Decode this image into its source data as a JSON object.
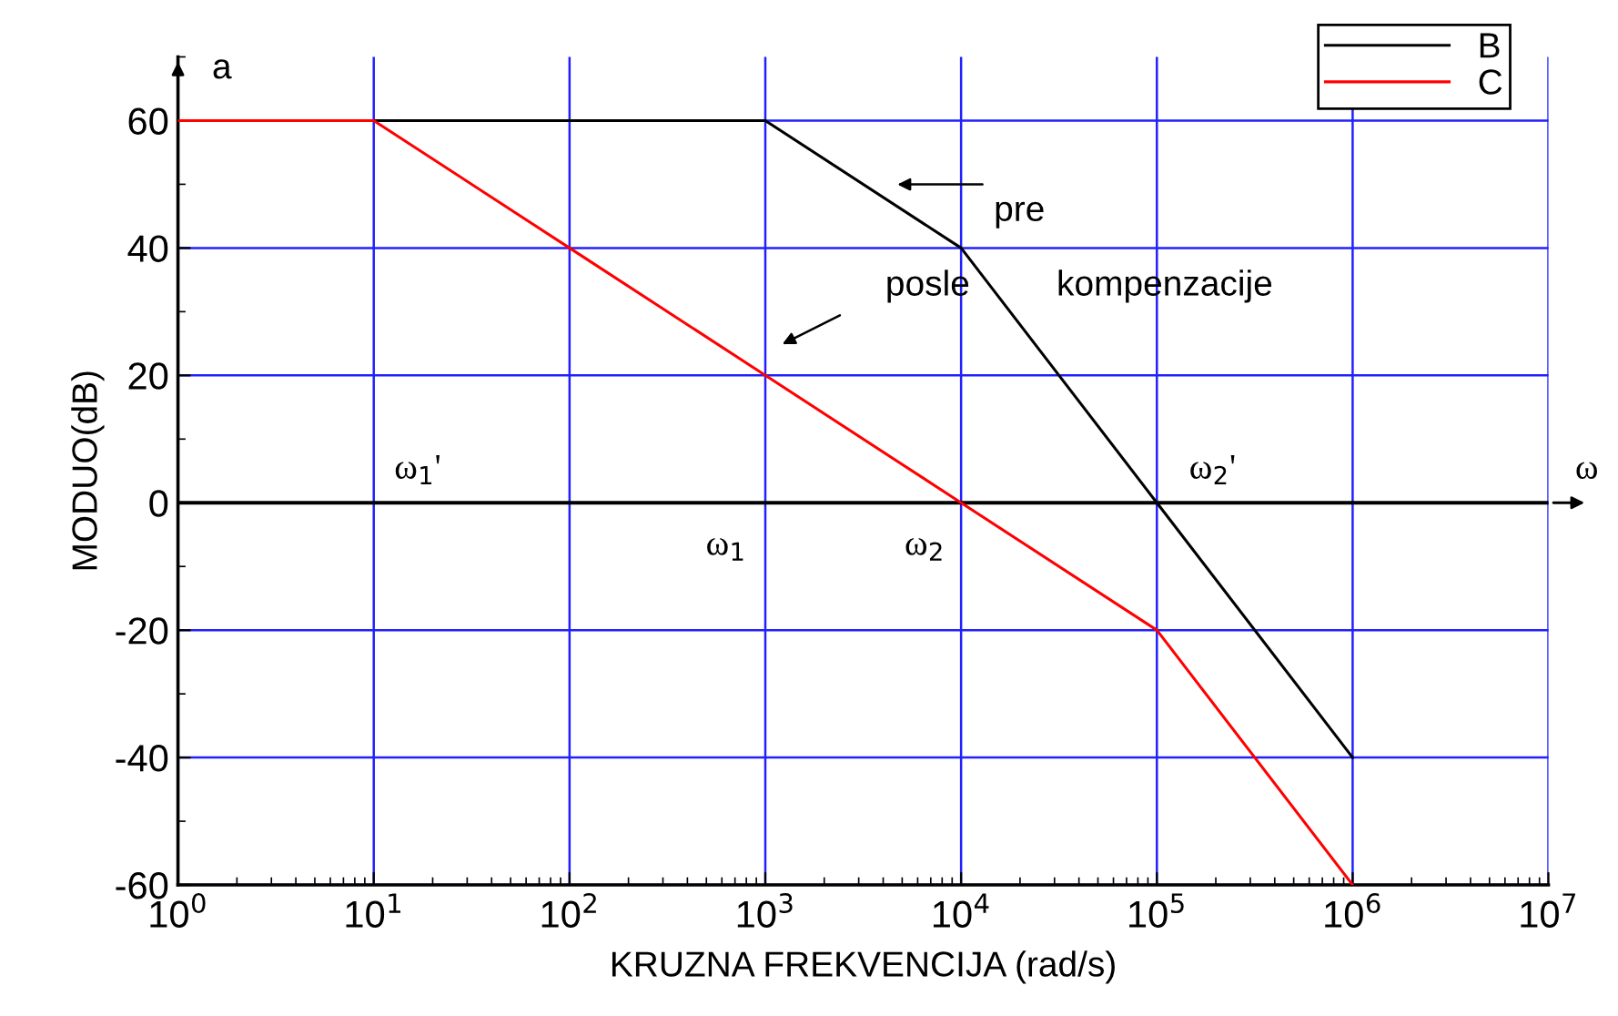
{
  "chart_data": {
    "type": "line",
    "xlabel": "KRUZNA FREKVENCIJA (rad/s)",
    "ylabel": "MODUO(dB)",
    "x": [
      1,
      10,
      100,
      1000,
      10000,
      100000,
      1000000
    ],
    "series": [
      {
        "name": "B",
        "color": "#000000",
        "values": [
          60,
          60,
          60,
          60,
          40,
          0,
          -40
        ]
      },
      {
        "name": "C",
        "color": "#ff0000",
        "values": [
          60,
          60,
          40,
          20,
          0,
          -20,
          -60
        ]
      }
    ],
    "log": "x",
    "xlim": [
      1,
      10000000
    ],
    "ylim": [
      -60,
      70
    ],
    "xticks": [
      {
        "value": 1,
        "label": "10$^{0}$"
      },
      {
        "value": 10,
        "label": "10$^{1}$"
      },
      {
        "value": 100,
        "label": "10$^{2}$"
      },
      {
        "value": 1000,
        "label": "10$^{3}$"
      },
      {
        "value": 10000,
        "label": "10$^{4}$"
      },
      {
        "value": 100000,
        "label": "10$^{5}$"
      },
      {
        "value": 1000000,
        "label": "10$^{6}$"
      },
      {
        "value": 10000000,
        "label": "10$^{7}$"
      }
    ],
    "yticks": [
      -60,
      -40,
      -20,
      0,
      20,
      40,
      60
    ],
    "grid": true,
    "legend": "top right",
    "marker": "none",
    "line_style": "solid",
    "ref_lines": [
      {
        "axis": "y",
        "value": 0,
        "color": "#000000"
      }
    ],
    "annotations": [
      "pre",
      "posle",
      "kompenzacije",
      "ω$_{1}$'",
      "ω$_{1}$",
      "ω$_{2}$",
      "ω$_{2}$'",
      "ω",
      "a"
    ]
  }
}
